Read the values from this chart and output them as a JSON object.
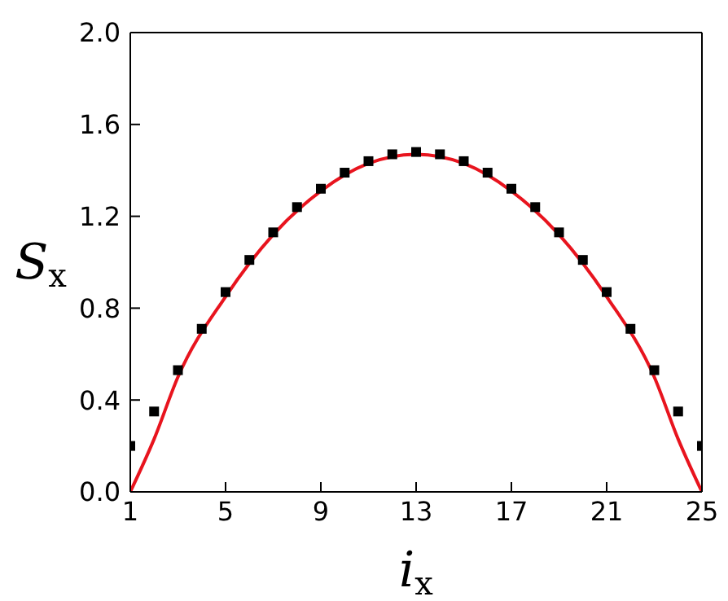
{
  "chart_data": {
    "type": "scatter",
    "xlabel": "i$_{x}$",
    "ylabel": "S$_{x}$",
    "xlim": [
      1,
      25
    ],
    "xticks": [
      1,
      5,
      9,
      13,
      17,
      21,
      25
    ],
    "ylim": [
      0,
      2.0
    ],
    "yticks": [
      {
        "value": 0,
        "label": "0.0"
      },
      {
        "value": 0.4,
        "label": "0.4"
      },
      {
        "value": 0.8,
        "label": "0.8"
      },
      {
        "value": 1.2,
        "label": "1.2"
      },
      {
        "value": 1.6,
        "label": "1.6"
      },
      {
        "value": 2.0,
        "label": "2.0"
      }
    ],
    "grid": false,
    "series": [
      {
        "type": "line",
        "color": "#e8141e",
        "marker": "none",
        "line_style": "solid",
        "x": [
          1,
          2,
          3,
          5,
          7,
          9,
          11,
          13,
          15,
          17,
          19,
          21,
          23,
          24,
          25
        ],
        "values": [
          0,
          0.23,
          0.5,
          0.85,
          1.12,
          1.31,
          1.43,
          1.47,
          1.43,
          1.31,
          1.12,
          0.85,
          0.5,
          0.23,
          0
        ]
      },
      {
        "color": "#000000",
        "marker": "square",
        "x": [
          1,
          2,
          3,
          4,
          5,
          6,
          7,
          8,
          9,
          10,
          11,
          12,
          13,
          14,
          15,
          16,
          17,
          18,
          19,
          20,
          21,
          22,
          23,
          24,
          25
        ],
        "values": [
          0.2,
          0.35,
          0.53,
          0.71,
          0.87,
          1.01,
          1.13,
          1.24,
          1.32,
          1.39,
          1.44,
          1.47,
          1.48,
          1.47,
          1.44,
          1.39,
          1.32,
          1.24,
          1.13,
          1.01,
          0.87,
          0.71,
          0.53,
          0.35,
          0.2
        ]
      }
    ]
  }
}
